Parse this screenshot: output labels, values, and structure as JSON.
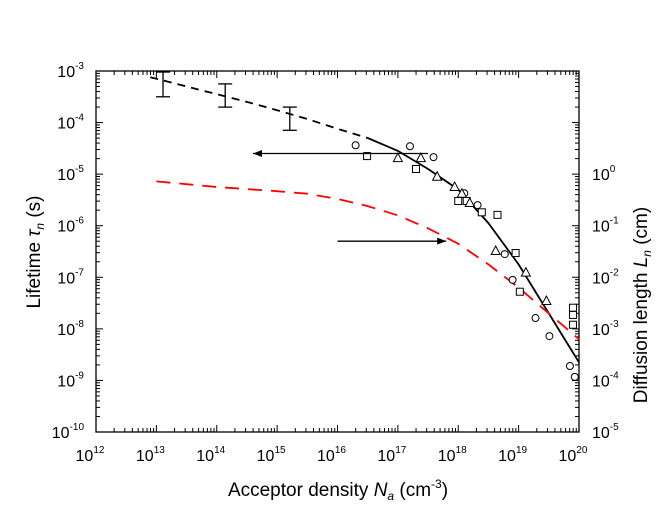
{
  "chart_data": {
    "type": "scatter",
    "title": "",
    "xlabel": "Acceptor density N_a (cm^-3)",
    "ylabel": "Lifetime τ_n (s)",
    "y2label": "Diffusion length L_n (cm)",
    "xscale": "log",
    "yscale": "log",
    "xlim_exp": [
      12,
      20
    ],
    "ylim_exp": [
      -10,
      -3
    ],
    "y2_offset_exp": 5,
    "grid": false,
    "x_tick_exps": [
      12,
      13,
      14,
      15,
      16,
      17,
      18,
      19,
      20
    ],
    "y_tick_exps": [
      -3,
      -4,
      -5,
      -6,
      -7,
      -8,
      -9,
      -10
    ],
    "y2_tick_exps": [
      0,
      -1,
      -2,
      -3,
      -4,
      -5
    ],
    "xlabel_parts": {
      "main": "Acceptor density ",
      "var": "N",
      "sub": "a",
      "unit_open": " (cm",
      "unit_sup": "-3",
      "unit_close": ")"
    },
    "ylabel_parts": {
      "main": "Lifetime ",
      "var": "τ",
      "sub": "n",
      "unit": " (s)"
    },
    "y2label_parts": {
      "main": "Diffusion length ",
      "var": "L",
      "sub": "n",
      "unit": " (cm)"
    },
    "series": [
      {
        "name": "Lifetime error bars",
        "kind": "errorbar",
        "color": "#000000",
        "points": [
          {
            "x_exp": 13.11,
            "y_exp": -3.17,
            "y_lo_exp": -3.5,
            "y_hi_exp": -3.02
          },
          {
            "x_exp": 14.14,
            "y_exp": -3.6,
            "y_lo_exp": -3.7,
            "y_hi_exp": -3.25
          },
          {
            "x_exp": 15.21,
            "y_exp": -3.9,
            "y_lo_exp": -4.15,
            "y_hi_exp": -3.7
          }
        ]
      },
      {
        "name": "Lifetime fit (dashed extrapolation)",
        "kind": "line",
        "style": "dashed",
        "color": "#000000",
        "points": [
          [
            12.9,
            -3.12
          ],
          [
            13.5,
            -3.3
          ],
          [
            14.0,
            -3.45
          ],
          [
            14.5,
            -3.6
          ],
          [
            15.0,
            -3.76
          ],
          [
            15.5,
            -3.93
          ],
          [
            16.0,
            -4.12
          ],
          [
            16.5,
            -4.3
          ]
        ]
      },
      {
        "name": "Lifetime fit (solid)",
        "kind": "line",
        "style": "solid",
        "color": "#000000",
        "points": [
          [
            16.5,
            -4.3
          ],
          [
            17.0,
            -4.55
          ],
          [
            17.5,
            -4.9
          ],
          [
            18.0,
            -5.3
          ],
          [
            18.5,
            -5.95
          ],
          [
            19.0,
            -6.75
          ],
          [
            19.5,
            -7.7
          ],
          [
            20.0,
            -8.65
          ]
        ]
      },
      {
        "name": "Diffusion length model",
        "kind": "line",
        "style": "dashed",
        "color": "#ff0000",
        "axis": "right",
        "points": [
          [
            13.0,
            -0.14
          ],
          [
            14.0,
            -0.25
          ],
          [
            15.0,
            -0.33
          ],
          [
            15.5,
            -0.38
          ],
          [
            16.0,
            -0.48
          ],
          [
            16.5,
            -0.62
          ],
          [
            17.0,
            -0.8
          ],
          [
            17.5,
            -1.05
          ],
          [
            18.0,
            -1.35
          ],
          [
            18.5,
            -1.75
          ],
          [
            19.0,
            -2.2
          ],
          [
            19.5,
            -2.7
          ],
          [
            20.0,
            -3.2
          ]
        ]
      },
      {
        "name": "Circles",
        "kind": "marker",
        "marker": "circle",
        "color": "#000000",
        "points": [
          [
            16.3,
            -4.44
          ],
          [
            17.2,
            -4.46
          ],
          [
            17.59,
            -4.67
          ],
          [
            18.1,
            -5.37
          ],
          [
            18.32,
            -5.6
          ],
          [
            18.77,
            -6.55
          ],
          [
            18.9,
            -7.05
          ],
          [
            19.28,
            -7.79
          ],
          [
            19.51,
            -8.14
          ],
          [
            19.85,
            -8.72
          ],
          [
            19.93,
            -8.93
          ]
        ]
      },
      {
        "name": "Squares",
        "kind": "marker",
        "marker": "square",
        "color": "#000000",
        "points": [
          [
            16.49,
            -4.65
          ],
          [
            17.3,
            -4.9
          ],
          [
            18.0,
            -5.52
          ],
          [
            18.14,
            -5.52
          ],
          [
            18.39,
            -5.74
          ],
          [
            18.65,
            -5.79
          ],
          [
            18.95,
            -6.53
          ],
          [
            19.02,
            -7.28
          ],
          [
            19.9,
            -7.59
          ],
          [
            19.9,
            -7.73
          ],
          [
            19.9,
            -7.92
          ]
        ]
      },
      {
        "name": "Triangles",
        "kind": "marker",
        "marker": "triangle",
        "color": "#000000",
        "points": [
          [
            17.0,
            -4.69
          ],
          [
            17.38,
            -4.69
          ],
          [
            17.65,
            -5.05
          ],
          [
            17.94,
            -5.25
          ],
          [
            18.06,
            -5.38
          ],
          [
            18.19,
            -5.56
          ],
          [
            18.62,
            -6.49
          ],
          [
            19.12,
            -6.91
          ],
          [
            19.46,
            -7.46
          ]
        ]
      }
    ],
    "annotations": [
      {
        "kind": "arrow",
        "direction": "left",
        "meaning": "points to left axis (lifetime)",
        "from_x_exp": 17.5,
        "to_x_exp": 14.6,
        "y_exp": -4.6
      },
      {
        "kind": "arrow",
        "direction": "right",
        "meaning": "points to right axis (diffusion length)",
        "from_x_exp": 16.0,
        "to_x_exp": 17.8,
        "y_exp": -6.3
      }
    ]
  }
}
